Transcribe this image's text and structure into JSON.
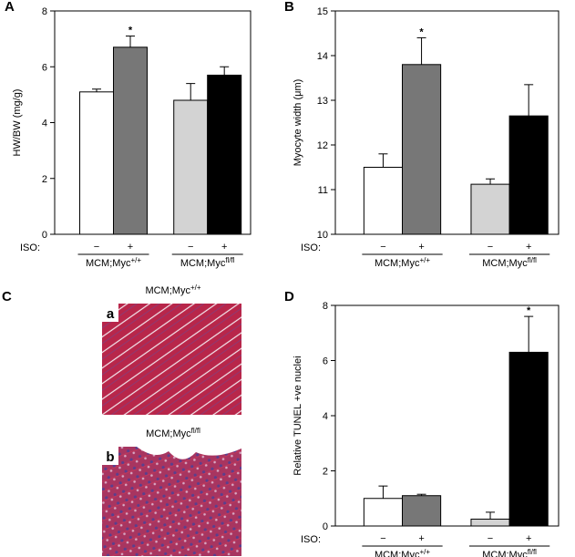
{
  "chart_data": [
    {
      "type": "bar",
      "panel": "A",
      "ylabel": "HW/BW (mg/g)",
      "ylim": [
        0,
        8
      ],
      "yticks": [
        0,
        2,
        4,
        6,
        8
      ],
      "x_label": "ISO:",
      "categories": [
        "−",
        "+",
        "−",
        "+"
      ],
      "values": [
        5.1,
        6.7,
        4.8,
        5.7
      ],
      "errors": [
        0.1,
        0.4,
        0.6,
        0.3
      ],
      "colors": [
        "#ffffff",
        "#777777",
        "#d3d3d3",
        "#000000"
      ],
      "significance": [
        null,
        "*",
        null,
        null
      ],
      "groups": [
        {
          "name": "MCM;Myc",
          "sup": "+/+"
        },
        {
          "name": "MCM;Myc",
          "sup": "fl/fl"
        }
      ]
    },
    {
      "type": "bar",
      "panel": "B",
      "ylabel": "Myocyte width (μm)",
      "ylim": [
        10,
        15
      ],
      "yticks": [
        10,
        11,
        12,
        13,
        14,
        15
      ],
      "x_label": "ISO:",
      "categories": [
        "−",
        "+",
        "−",
        "+"
      ],
      "values": [
        11.5,
        13.8,
        11.12,
        12.65
      ],
      "errors": [
        0.3,
        0.6,
        0.12,
        0.7
      ],
      "colors": [
        "#ffffff",
        "#777777",
        "#d3d3d3",
        "#000000"
      ],
      "significance": [
        null,
        "*",
        null,
        null
      ],
      "groups": [
        {
          "name": "MCM;Myc",
          "sup": "+/+"
        },
        {
          "name": "MCM;Myc",
          "sup": "fl/fl"
        }
      ]
    },
    {
      "type": "bar",
      "panel": "D",
      "ylabel": "Relative TUNEL +ve nuclei",
      "ylim": [
        0,
        8
      ],
      "yticks": [
        0,
        2,
        4,
        6,
        8
      ],
      "x_label": "ISO:",
      "categories": [
        "−",
        "+",
        "−",
        "+"
      ],
      "values": [
        1.0,
        1.1,
        0.25,
        6.3
      ],
      "errors": [
        0.45,
        0.05,
        0.25,
        1.3
      ],
      "colors": [
        "#ffffff",
        "#777777",
        "#d3d3d3",
        "#000000"
      ],
      "significance": [
        null,
        null,
        null,
        "*"
      ],
      "groups": [
        {
          "name": "MCM;Myc",
          "sup": "+/+"
        },
        {
          "name": "MCM;Myc",
          "sup": "fl/fl"
        }
      ]
    }
  ],
  "micrographs": {
    "panel": "C",
    "images": [
      {
        "label": "a",
        "name": "MCM;Myc",
        "sup": "+/+"
      },
      {
        "label": "b",
        "name": "MCM;Myc",
        "sup": "fl/fl"
      }
    ]
  }
}
